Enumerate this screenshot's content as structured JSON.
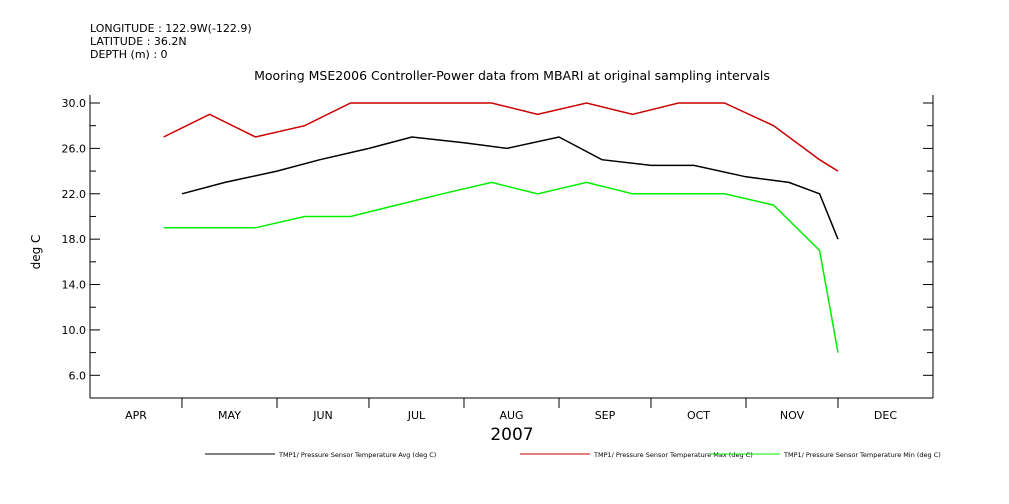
{
  "header": {
    "longitude": "LONGITUDE : 122.9W(-122.9)",
    "latitude": "LATITUDE : 36.2N",
    "depth": "DEPTH (m) : 0"
  },
  "chart_data": {
    "type": "line",
    "title": "Mooring MSE2006 Controller-Power data from MBARI at original sampling intervals",
    "ylabel": "deg C",
    "xlabel": "2007",
    "ylim": [
      4.0,
      30.0
    ],
    "yticks": [
      "6.0",
      "10.0",
      "14.0",
      "18.0",
      "22.0",
      "26.0",
      "30.0"
    ],
    "months": [
      "APR",
      "MAY",
      "JUN",
      "JUL",
      "AUG",
      "SEP",
      "OCT",
      "NOV",
      "DEC"
    ],
    "grid": false,
    "legend_position": "bottom",
    "colors": {
      "avg": "#000000",
      "max": "#cc0000",
      "min": "#00ee00"
    },
    "series": [
      {
        "name": "TMP1/ Pressure Sensor Temperature Avg (deg C)",
        "key": "avg",
        "x": [
          "May 01",
          "May 15",
          "Jun 01",
          "Jun 15",
          "Jul 01",
          "Jul 15",
          "Aug 01",
          "Aug 15",
          "Sep 01",
          "Sep 15",
          "Oct 01",
          "Oct 15",
          "Nov 01",
          "Nov 15",
          "Nov 25",
          "Dec 01"
        ],
        "values": [
          22,
          23,
          24,
          25,
          26,
          27,
          26.5,
          26,
          27,
          25,
          24.5,
          24.5,
          23.5,
          23,
          22,
          18
        ]
      },
      {
        "name": "TMP1/ Pressure Sensor Temperature Max (deg C)",
        "key": "max",
        "x": [
          "Apr 25",
          "May 10",
          "May 25",
          "Jun 10",
          "Jun 25",
          "Jul 10",
          "Jul 25",
          "Aug 10",
          "Aug 25",
          "Sep 10",
          "Sep 25",
          "Oct 10",
          "Oct 25",
          "Nov 10",
          "Nov 25",
          "Dec 01"
        ],
        "values": [
          27,
          29,
          27,
          28,
          30,
          30,
          30,
          30,
          29,
          30,
          29,
          30,
          30,
          28,
          25,
          24
        ]
      },
      {
        "name": "TMP1/ Pressure Sensor Temperature Min (deg C)",
        "key": "min",
        "x": [
          "Apr 25",
          "May 10",
          "May 25",
          "Jun 10",
          "Jun 25",
          "Jul 10",
          "Jul 25",
          "Aug 10",
          "Aug 25",
          "Sep 10",
          "Sep 25",
          "Oct 10",
          "Oct 25",
          "Nov 10",
          "Nov 25",
          "Dec 01"
        ],
        "values": [
          19,
          19,
          19,
          20,
          20,
          21,
          22,
          23,
          22,
          23,
          22,
          22,
          22,
          21,
          17,
          8
        ]
      }
    ]
  }
}
